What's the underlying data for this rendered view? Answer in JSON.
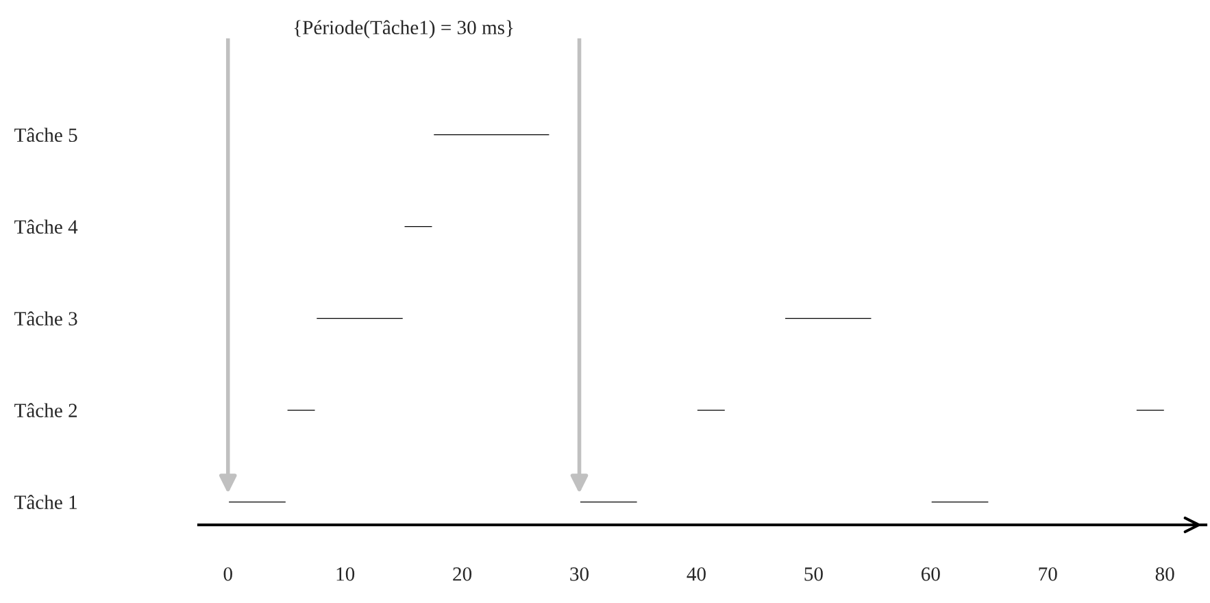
{
  "chart_data": {
    "type": "bar",
    "orientation": "horizontal",
    "categories": [
      "Tâche 5",
      "Tâche 4",
      "Tâche 3",
      "Tâche 2",
      "Tâche 1"
    ],
    "series": [
      {
        "color": "#000000",
        "base": [
          17.5,
          15,
          7.5,
          5,
          0
        ],
        "values": [
          10,
          2.5,
          7.5,
          2.5,
          5
        ]
      },
      {
        "color": "#000000",
        "base": [
          null,
          null,
          47.5,
          40,
          30
        ],
        "values": [
          null,
          null,
          7.5,
          2.5,
          5
        ]
      },
      {
        "color": "#000000",
        "base": [
          null,
          null,
          null,
          77.5,
          60
        ],
        "values": [
          null,
          null,
          null,
          2.5,
          5
        ]
      }
    ],
    "xlim": [
      -2.5,
      83.5
    ],
    "xticks": [
      0,
      10,
      20,
      30,
      40,
      50,
      60,
      70,
      80
    ],
    "ref_lines": [
      {
        "axis": "x",
        "value": 0,
        "color": "#c0c0c0"
      },
      {
        "axis": "x",
        "value": 30,
        "color": "#c0c0c0"
      }
    ],
    "annotations": [
      "{Période(Tâche1) = 30 ms}"
    ],
    "grid": false,
    "legend": false
  }
}
